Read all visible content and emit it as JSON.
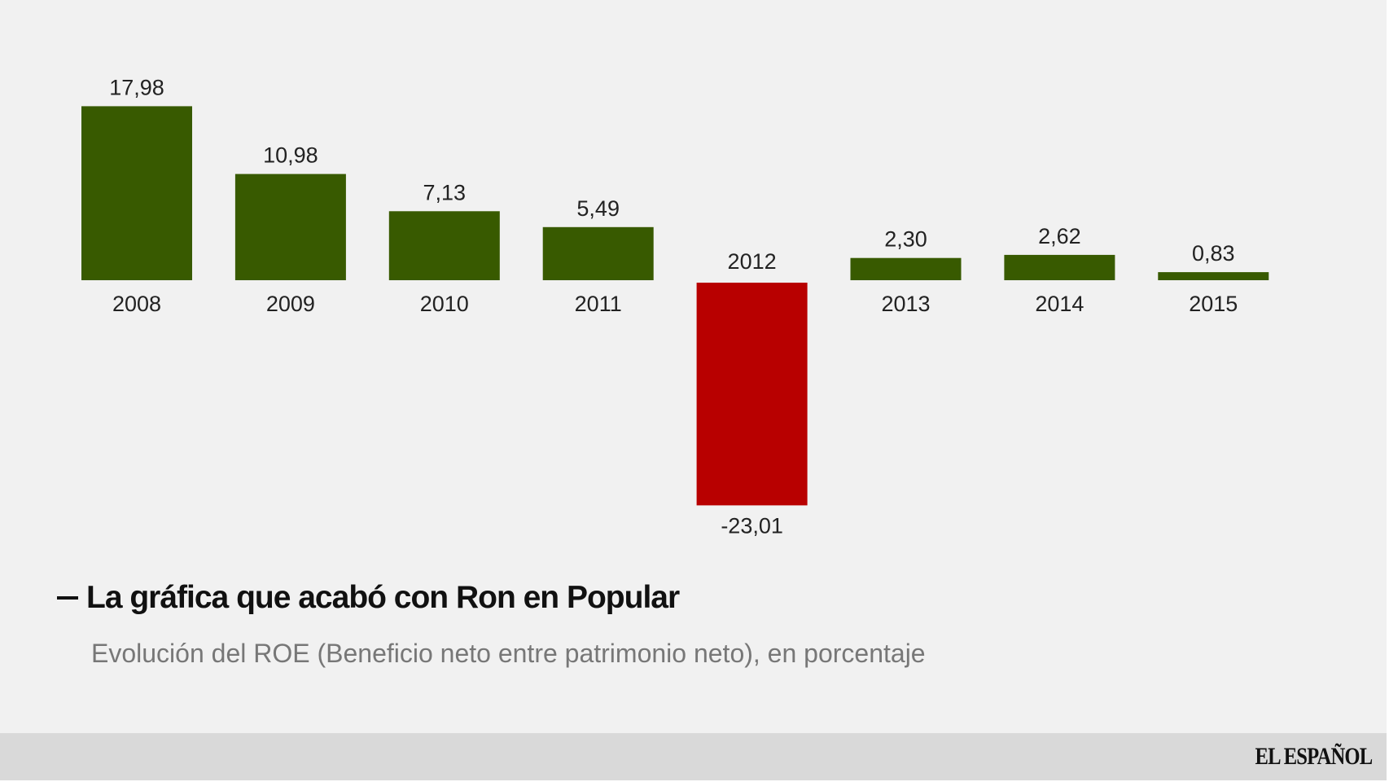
{
  "chart_data": {
    "type": "bar",
    "title": "La gráfica que acabó con Ron en Popular",
    "subtitle": "Evolución del ROE (Beneficio neto entre patrimonio neto), en porcentaje",
    "categories": [
      "2008",
      "2009",
      "2010",
      "2011",
      "2012",
      "2013",
      "2014",
      "2015"
    ],
    "values": [
      17.98,
      10.98,
      7.13,
      5.49,
      -23.01,
      2.3,
      2.62,
      0.83
    ],
    "value_labels": [
      "17,98",
      "10,98",
      "7,13",
      "5,49",
      "-23,01",
      "2,30",
      "2,62",
      "0,83"
    ],
    "xlabel": "",
    "ylabel": "",
    "ylim": [
      -23.01,
      17.98
    ],
    "grid": false,
    "legend": "none",
    "colors": {
      "positive": "#385a00",
      "negative": "#b80000"
    }
  },
  "footer": {
    "brand": "EL ESPAÑOL"
  }
}
